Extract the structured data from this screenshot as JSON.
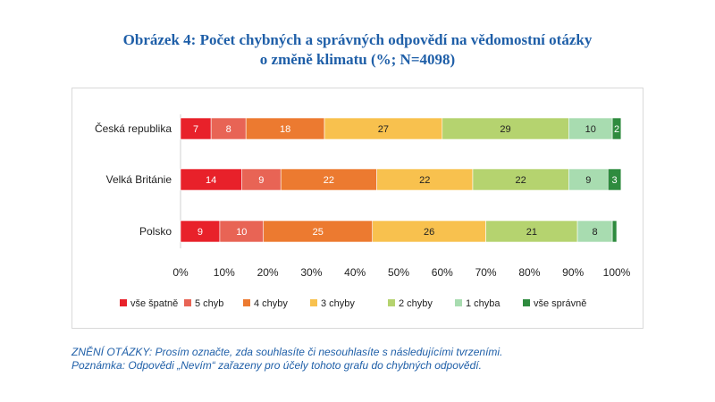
{
  "figure": {
    "title_line1": "Obrázek 4: Počet chybných a správných odpovědí na vědomostní otázky",
    "title_line2": "o změně klimatu (%; N=4098)"
  },
  "chart_data": {
    "type": "bar",
    "orientation": "horizontal",
    "stacked": true,
    "categories": [
      "Česká republika",
      "Velká Británie",
      "Polsko"
    ],
    "series": [
      {
        "name": "vše špatně",
        "color": "#e8212a",
        "values": [
          7,
          14,
          9
        ]
      },
      {
        "name": "5 chyb",
        "color": "#e86455",
        "values": [
          8,
          9,
          10
        ]
      },
      {
        "name": "4 chyby",
        "color": "#ec7a30",
        "values": [
          18,
          22,
          25
        ]
      },
      {
        "name": "3 chyby",
        "color": "#f8c14e",
        "values": [
          27,
          22,
          26
        ]
      },
      {
        "name": "2 chyby",
        "color": "#b5d36f",
        "values": [
          29,
          22,
          21
        ]
      },
      {
        "name": "1 chyba",
        "color": "#a8dcb0",
        "values": [
          10,
          9,
          8
        ]
      },
      {
        "name": "vše správně",
        "color": "#2e8b3e",
        "values": [
          2,
          3,
          1
        ]
      }
    ],
    "data_labels": [
      [
        "7",
        "14",
        "9"
      ],
      [
        "8",
        "9",
        "10"
      ],
      [
        "18",
        "22",
        "25"
      ],
      [
        "27",
        "22",
        "26"
      ],
      [
        "29",
        "22",
        "21"
      ],
      [
        "10",
        "9",
        "8"
      ],
      [
        "2",
        "3",
        ""
      ]
    ],
    "x_ticks": [
      "0%",
      "10%",
      "20%",
      "30%",
      "40%",
      "50%",
      "60%",
      "70%",
      "80%",
      "90%",
      "100%"
    ],
    "xlim": [
      0,
      100
    ],
    "legend_position": "bottom",
    "grid": false
  },
  "notes": {
    "question": "ZNĚNÍ OTÁZKY: Prosím označte, zda souhlasíte či nesouhlasíte s následujícími tvrzeními.",
    "note": "Poznámka: Odpovědi „Nevím“ zařazeny pro účely tohoto grafu do chybných odpovědí."
  }
}
